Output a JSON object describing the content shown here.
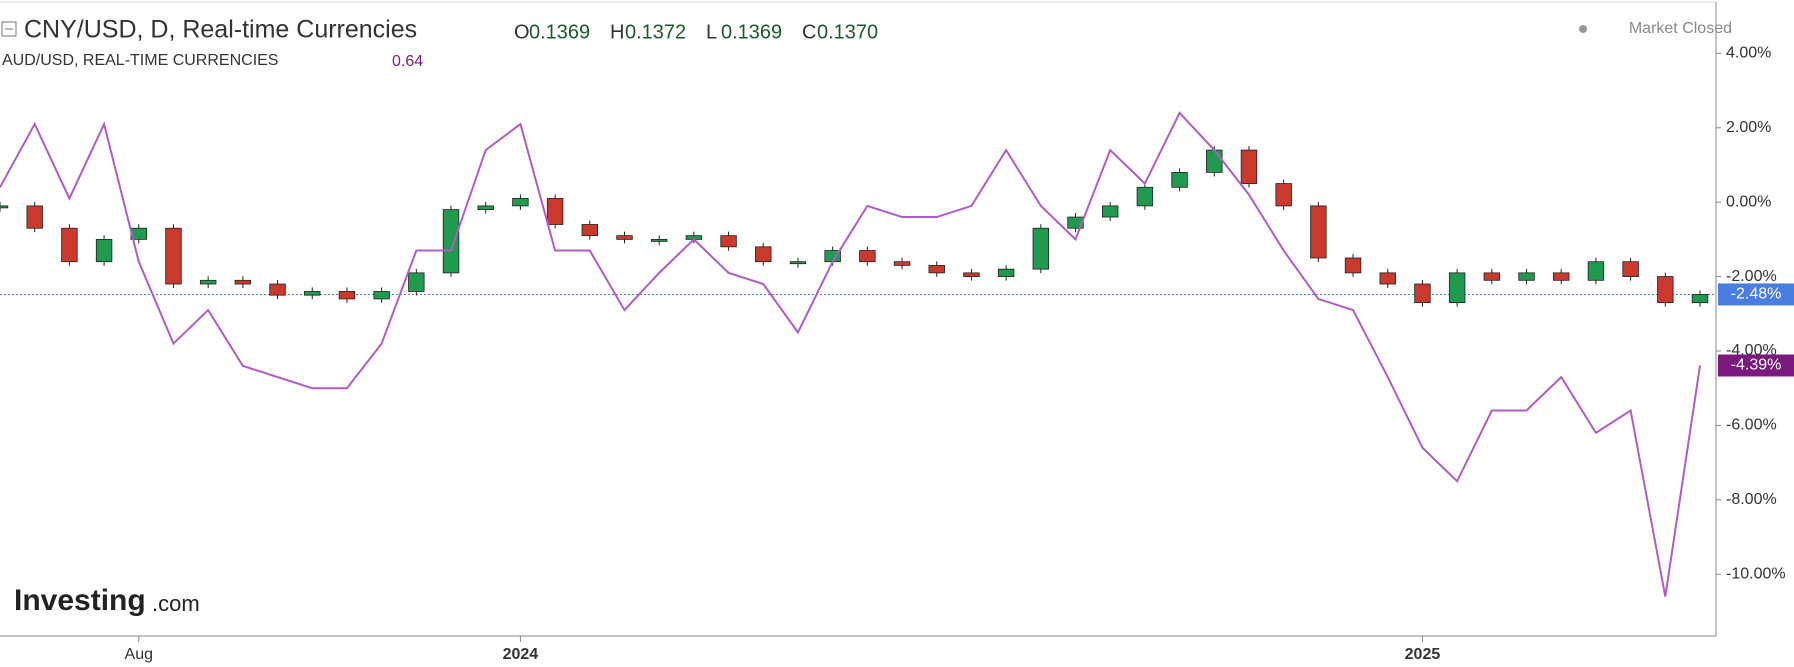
{
  "chart_data": {
    "type": "line",
    "title": "CNY/USD, D, Real-time Currencies",
    "ohlc": [
      {
        "label": "O",
        "value": "0.1369"
      },
      {
        "label": "H",
        "value": "0.1372"
      },
      {
        "label": "L",
        "value": "0.1369"
      },
      {
        "label": "C",
        "value": "0.1370"
      }
    ],
    "compare_title": "AUD/USD, REAL-TIME CURRENCIES",
    "compare_value": "0.64",
    "status": "Market Closed",
    "brand": "Investing",
    "brand_suffix": ".com",
    "categories": [
      null,
      null,
      null,
      null,
      "Aug",
      null,
      null,
      null,
      null,
      null,
      null,
      null,
      null,
      null,
      null,
      "2024",
      null,
      null,
      null,
      null,
      null,
      null,
      null,
      null,
      null,
      null,
      null,
      null,
      null,
      null,
      null,
      null,
      null,
      null,
      null,
      null,
      null,
      null,
      null,
      null,
      null,
      "2025",
      null,
      null,
      null,
      null,
      null,
      null,
      null,
      null
    ],
    "series": [
      {
        "name": "CNY/USD",
        "style": "candles",
        "up_color": "#1f9a4e",
        "down_color": "#c93a2c",
        "color": "#4a7de0",
        "end_label": "-2.48%",
        "values": [
          -0.1,
          -0.7,
          -1.6,
          -1.0,
          -0.7,
          -2.2,
          -2.1,
          -2.2,
          -2.5,
          -2.4,
          -2.6,
          -2.4,
          -1.9,
          -0.2,
          -0.1,
          0.1,
          -0.6,
          -0.9,
          -1.0,
          -1.0,
          -0.9,
          -1.2,
          -1.6,
          -1.6,
          -1.3,
          -1.6,
          -1.7,
          -1.9,
          -2.0,
          -1.8,
          -0.7,
          -0.4,
          -0.1,
          0.4,
          0.8,
          1.4,
          0.5,
          -0.1,
          -1.5,
          -1.9,
          -2.2,
          -2.7,
          -1.9,
          -2.1,
          -1.9,
          -2.1,
          -1.6,
          -2.0,
          -2.7,
          -2.48
        ]
      },
      {
        "name": "AUD/USD",
        "style": "line",
        "color": "#b05cc6",
        "label_color": "#7b1a7e",
        "end_label": "-4.39%",
        "values": [
          0.4,
          2.1,
          0.1,
          2.1,
          -1.6,
          -3.8,
          -2.9,
          -4.4,
          -4.7,
          -5.0,
          -5.0,
          -3.8,
          -1.3,
          -1.3,
          1.4,
          2.1,
          -1.3,
          -1.3,
          -2.9,
          -1.9,
          -1.0,
          -1.9,
          -2.2,
          -3.5,
          -1.6,
          -0.1,
          -0.4,
          -0.4,
          -0.1,
          1.4,
          -0.1,
          -1.0,
          1.4,
          0.5,
          2.4,
          1.4,
          0.2,
          -1.3,
          -2.6,
          -2.9,
          -4.7,
          -6.6,
          -7.5,
          -5.6,
          -5.6,
          -4.7,
          -6.2,
          -5.6,
          -10.6,
          -4.39
        ]
      }
    ],
    "ylim": [
      -11.66,
      5.38
    ],
    "yticks": [
      {
        "value": 4,
        "label": "4.00%"
      },
      {
        "value": 2,
        "label": "2.00%"
      },
      {
        "value": 0,
        "label": "0.00%"
      },
      {
        "value": -2,
        "label": "-2.00%"
      },
      {
        "value": -4,
        "label": "-4.00%"
      },
      {
        "value": -6,
        "label": "-6.00%"
      },
      {
        "value": -8,
        "label": "-8.00%"
      },
      {
        "value": -10,
        "label": "-10.00%"
      }
    ]
  }
}
